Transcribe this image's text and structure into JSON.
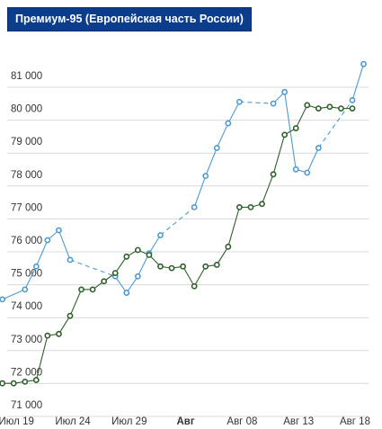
{
  "title": "Премиум-95 (Европейская часть России)",
  "colors": {
    "title_bg": "#0c3d8c",
    "series_blue": "#4d9ad0",
    "series_green": "#2e5e2a",
    "grid": "#d9d9d9"
  },
  "chart_data": {
    "type": "line",
    "title": "Премиум-95 (Европейская часть России)",
    "xlabel": "",
    "ylabel": "",
    "grid": true,
    "ylim": [
      71000,
      81500
    ],
    "yticks": [
      {
        "value": 71000,
        "label": "71 000"
      },
      {
        "value": 72000,
        "label": "72 000"
      },
      {
        "value": 73000,
        "label": "73 000"
      },
      {
        "value": 74000,
        "label": "74 000"
      },
      {
        "value": 75000,
        "label": "75 000"
      },
      {
        "value": 76000,
        "label": "76 000"
      },
      {
        "value": 77000,
        "label": "77 000"
      },
      {
        "value": 78000,
        "label": "78 000"
      },
      {
        "value": 79000,
        "label": "79 000"
      },
      {
        "value": 80000,
        "label": "80 000"
      },
      {
        "value": 81000,
        "label": "81 000"
      }
    ],
    "xticks": [
      {
        "label": "Июл 19",
        "bold": false
      },
      {
        "label": "Июл 24",
        "bold": false
      },
      {
        "label": "Июл 29",
        "bold": false
      },
      {
        "label": "Авг",
        "bold": true
      },
      {
        "label": "Авг 08",
        "bold": false
      },
      {
        "label": "Авг 13",
        "bold": false
      },
      {
        "label": "Авг 18",
        "bold": false
      }
    ],
    "dates": [
      "07-19",
      "07-20",
      "07-21",
      "07-22",
      "07-23",
      "07-24",
      "07-25",
      "07-26",
      "07-27",
      "07-28",
      "07-29",
      "07-30",
      "07-31",
      "08-01",
      "08-02",
      "08-03",
      "08-04",
      "08-05",
      "08-06",
      "08-07",
      "08-08",
      "08-09",
      "08-10",
      "08-11",
      "08-12",
      "08-13",
      "08-14",
      "08-15",
      "08-16",
      "08-17",
      "08-18",
      "08-19"
    ],
    "series": [
      {
        "color": "#4d9ad0",
        "points": [
          {
            "x": "07-18",
            "y": 74200
          },
          {
            "x": "07-20",
            "y": 74500
          },
          {
            "x": "07-21",
            "y": 75200
          },
          {
            "x": "07-22",
            "y": 76000
          },
          {
            "x": "07-23",
            "y": 76300
          },
          {
            "x": "07-24",
            "y": 75400,
            "dashed_to_next": true
          },
          {
            "x": "07-28",
            "y": 74900
          },
          {
            "x": "07-29",
            "y": 74400
          },
          {
            "x": "07-30",
            "y": 74900
          },
          {
            "x": "07-31",
            "y": 75600
          },
          {
            "x": "08-01",
            "y": 76150,
            "dashed_to_next": true
          },
          {
            "x": "08-04",
            "y": 77000
          },
          {
            "x": "08-05",
            "y": 77950
          },
          {
            "x": "08-06",
            "y": 78800
          },
          {
            "x": "08-07",
            "y": 79550
          },
          {
            "x": "08-08",
            "y": 80200,
            "dashed_to_next": true
          },
          {
            "x": "08-11",
            "y": 80150
          },
          {
            "x": "08-12",
            "y": 80500
          },
          {
            "x": "08-13",
            "y": 78150
          },
          {
            "x": "08-14",
            "y": 78050
          },
          {
            "x": "08-15",
            "y": 78800,
            "dashed_to_next": true
          },
          {
            "x": "08-18",
            "y": 80250
          },
          {
            "x": "08-19",
            "y": 81350
          }
        ]
      },
      {
        "color": "#2e5e2a",
        "points": [
          {
            "x": "07-18",
            "y": 71650
          },
          {
            "x": "07-19",
            "y": 71650
          },
          {
            "x": "07-20",
            "y": 71700
          },
          {
            "x": "07-21",
            "y": 71750
          },
          {
            "x": "07-22",
            "y": 73100
          },
          {
            "x": "07-23",
            "y": 73150
          },
          {
            "x": "07-24",
            "y": 73700
          },
          {
            "x": "07-25",
            "y": 74500
          },
          {
            "x": "07-26",
            "y": 74500
          },
          {
            "x": "07-27",
            "y": 74750
          },
          {
            "x": "07-28",
            "y": 75000
          },
          {
            "x": "07-29",
            "y": 75500
          },
          {
            "x": "07-30",
            "y": 75700
          },
          {
            "x": "07-31",
            "y": 75550
          },
          {
            "x": "08-01",
            "y": 75200
          },
          {
            "x": "08-02",
            "y": 75150
          },
          {
            "x": "08-03",
            "y": 75200
          },
          {
            "x": "08-04",
            "y": 74600
          },
          {
            "x": "08-05",
            "y": 75200
          },
          {
            "x": "08-06",
            "y": 75250
          },
          {
            "x": "08-07",
            "y": 75800
          },
          {
            "x": "08-08",
            "y": 77000
          },
          {
            "x": "08-09",
            "y": 77000
          },
          {
            "x": "08-10",
            "y": 77100
          },
          {
            "x": "08-11",
            "y": 78000
          },
          {
            "x": "08-12",
            "y": 79200
          },
          {
            "x": "08-13",
            "y": 79400
          },
          {
            "x": "08-14",
            "y": 80100
          },
          {
            "x": "08-15",
            "y": 80000
          },
          {
            "x": "08-16",
            "y": 80050
          },
          {
            "x": "08-17",
            "y": 80000
          },
          {
            "x": "08-18",
            "y": 80000
          }
        ]
      }
    ]
  }
}
